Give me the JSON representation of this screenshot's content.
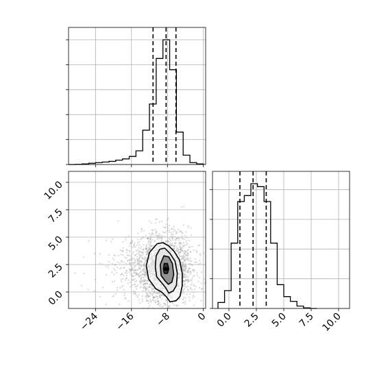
{
  "chart_data": [
    {
      "type": "histogram",
      "panel": "top-left marginal (parameter 1)",
      "xlim": [
        -30,
        0.5
      ],
      "bins": [
        -30,
        -28.5,
        -27,
        -25.5,
        -24,
        -22.5,
        -21,
        -19.5,
        -18,
        -16.5,
        -15,
        -13.5,
        -12,
        -10.5,
        -9,
        -7.5,
        -6,
        -4.5,
        -3,
        -1.5,
        0
      ],
      "counts": [
        0,
        0.3,
        1,
        2,
        3,
        4,
        5,
        7,
        9,
        13,
        22,
        55,
        97,
        170,
        200,
        152,
        52,
        15,
        3,
        1
      ],
      "quantile_lines": [
        -11.2,
        -8.3,
        -6.1
      ],
      "ytick_labels": [
        "",
        "",
        "",
        "",
        "",
        ""
      ],
      "grid": true
    },
    {
      "type": "histogram",
      "panel": "bottom-right marginal (parameter 2)",
      "xlim": [
        -1.5,
        11
      ],
      "bins": [
        -1,
        -0.4,
        0.2,
        0.8,
        1.4,
        2,
        2.6,
        3.2,
        3.8,
        4.4,
        5,
        5.6,
        6.2,
        6.8,
        7.4,
        8
      ],
      "counts": [
        10,
        30,
        110,
        180,
        190,
        210,
        205,
        180,
        110,
        40,
        20,
        12,
        4,
        1,
        0
      ],
      "quantile_lines": [
        1.0,
        2.2,
        3.4
      ],
      "ytick_labels": [
        "",
        "",
        "",
        "",
        ""
      ],
      "xtick_labels": [
        "0.0",
        "2.5",
        "5.0",
        "7.5",
        "10.0"
      ],
      "xticks": [
        0,
        2.5,
        5,
        7.5,
        10
      ],
      "grid": true
    },
    {
      "type": "scatter",
      "panel": "bottom-left joint (parameter 1 vs parameter 2) with density contours",
      "xlim": [
        -30,
        0.5
      ],
      "ylim": [
        -1.5,
        11
      ],
      "xticks": [
        -24,
        -16,
        -8,
        0
      ],
      "xtick_labels": [
        "−24",
        "−16",
        "−8",
        "0"
      ],
      "yticks": [
        0,
        2.5,
        5,
        7.5,
        10
      ],
      "ytick_labels": [
        "0.0",
        "2.5",
        "5.0",
        "7.5",
        "10.0"
      ],
      "center": [
        -8.3,
        2.1
      ],
      "contours": [
        {
          "level": "outer",
          "points": [
            [
              -10.3,
              4.4
            ],
            [
              -9.0,
              4.5
            ],
            [
              -7.7,
              4.2
            ],
            [
              -6.5,
              3.7
            ],
            [
              -5.3,
              2.9
            ],
            [
              -4.7,
              1.7
            ],
            [
              -4.7,
              0.6
            ],
            [
              -5.2,
              -0.4
            ],
            [
              -6.1,
              -0.8
            ],
            [
              -7.4,
              -0.9
            ],
            [
              -8.3,
              -0.4
            ],
            [
              -9.3,
              0.0
            ],
            [
              -10.6,
              0.3
            ],
            [
              -12.2,
              1.2
            ],
            [
              -12.7,
              2.4
            ],
            [
              -12.0,
              3.6
            ]
          ]
        },
        {
          "level": "second",
          "points": [
            [
              -9.7,
              3.9
            ],
            [
              -8.6,
              4.0
            ],
            [
              -7.4,
              3.5
            ],
            [
              -6.3,
              2.8
            ],
            [
              -5.8,
              1.7
            ],
            [
              -6.0,
              0.6
            ],
            [
              -6.7,
              0.1
            ],
            [
              -7.7,
              -0.1
            ],
            [
              -8.4,
              0.4
            ],
            [
              -9.4,
              0.9
            ],
            [
              -10.4,
              1.4
            ],
            [
              -10.7,
              2.3
            ],
            [
              -10.5,
              3.3
            ]
          ]
        },
        {
          "level": "third",
          "points": [
            [
              -8.8,
              3.3
            ],
            [
              -7.7,
              3.2
            ],
            [
              -6.9,
              2.6
            ],
            [
              -6.6,
              1.6
            ],
            [
              -7.0,
              0.9
            ],
            [
              -7.8,
              0.7
            ],
            [
              -8.5,
              1.0
            ],
            [
              -9.4,
              1.5
            ],
            [
              -9.6,
              2.5
            ]
          ]
        },
        {
          "level": "inner",
          "points": [
            [
              -8.7,
              2.6
            ],
            [
              -8.0,
              2.6
            ],
            [
              -7.7,
              2.1
            ],
            [
              -8.0,
              1.7
            ],
            [
              -8.7,
              1.7
            ],
            [
              -8.9,
              2.1
            ]
          ]
        }
      ],
      "grid": true
    }
  ]
}
